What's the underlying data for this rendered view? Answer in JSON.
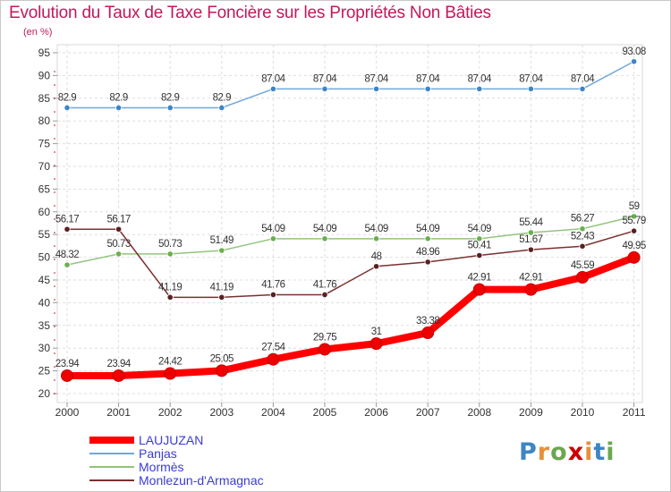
{
  "chart_data": {
    "type": "line",
    "title": "Evolution du Taux de Taxe Foncière sur les Propriétés Non Bâties",
    "ylabel": "(en %)",
    "xlabel": "",
    "ylim": [
      20,
      95
    ],
    "yticks": [
      20,
      25,
      30,
      35,
      40,
      45,
      50,
      55,
      60,
      65,
      70,
      75,
      80,
      85,
      90,
      95
    ],
    "categories": [
      "2000",
      "2001",
      "2002",
      "2003",
      "2004",
      "2005",
      "2006",
      "2007",
      "2008",
      "2009",
      "2010",
      "2011"
    ],
    "series": [
      {
        "name": "LAUJUZAN",
        "color": "#ff0000",
        "marker_color": "#ee0000",
        "values": [
          23.94,
          23.94,
          24.42,
          25.05,
          27.54,
          29.75,
          31,
          33.38,
          42.91,
          42.91,
          45.59,
          49.95
        ],
        "labels": [
          "23.94",
          "23.94",
          "24.42",
          "25.05",
          "27.54",
          "29.75",
          "31",
          "33.38",
          "42.91",
          "42.91",
          "45.59",
          "49.95"
        ]
      },
      {
        "name": "Panjas",
        "color": "#6fa8dc",
        "marker_color": "#3d85c6",
        "values": [
          82.9,
          82.9,
          82.9,
          82.9,
          87.04,
          87.04,
          87.04,
          87.04,
          87.04,
          87.04,
          87.04,
          93.08
        ],
        "labels": [
          "82.9",
          "82.9",
          "82.9",
          "82.9",
          "87.04",
          "87.04",
          "87.04",
          "87.04",
          "87.04",
          "87.04",
          "87.04",
          "93.08"
        ]
      },
      {
        "name": "Mormès",
        "color": "#93c47d",
        "marker_color": "#6ab04c",
        "values": [
          48.32,
          50.73,
          50.73,
          51.49,
          54.09,
          54.09,
          54.09,
          54.09,
          54.09,
          55.44,
          56.27,
          59
        ],
        "labels": [
          "48.32",
          "50.73",
          "50.73",
          "51.49",
          "54.09",
          "54.09",
          "54.09",
          "54.09",
          "54.09",
          "55.44",
          "56.27",
          "59"
        ]
      },
      {
        "name": "Monlezun-d'Armagnac",
        "color": "#7a3030",
        "marker_color": "#5b1f1f",
        "values": [
          56.17,
          56.17,
          41.19,
          41.19,
          41.76,
          41.76,
          48,
          48.96,
          50.41,
          51.67,
          52.43,
          55.79
        ],
        "labels": [
          "56.17",
          "56.17",
          "41.19",
          "41.19",
          "41.76",
          "41.76",
          "48",
          "48.96",
          "50.41",
          "51.67",
          "52.43",
          "55.79"
        ]
      }
    ]
  },
  "legend": [
    {
      "label": "LAUJUZAN",
      "color": "#ff0000"
    },
    {
      "label": "Panjas",
      "color": "#6fa8dc"
    },
    {
      "label": "Mormès",
      "color": "#93c47d"
    },
    {
      "label": "Monlezun-d'Armagnac",
      "color": "#7a3030"
    }
  ],
  "logo": {
    "letters": [
      "P",
      "r",
      "o",
      "x",
      "i",
      "t",
      "i"
    ],
    "colors": [
      "#3d85c6",
      "#e69138",
      "#6aa84f",
      "#cc0000",
      "#e69138",
      "#3d85c6",
      "#6aa84f"
    ]
  }
}
